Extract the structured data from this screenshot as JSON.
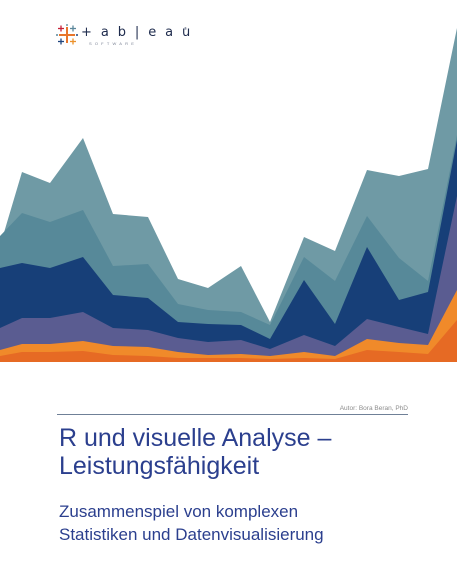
{
  "brand": {
    "name": "+ a b | e a u",
    "tagline": "SOFTWARE",
    "trademark": "®"
  },
  "document": {
    "author": "Autor: Bora Beran, PhD",
    "title_lines": [
      "R und visuelle Analyse –",
      "Leistungsfähigkeit"
    ],
    "subtitle_lines": [
      "Zusammenspiel von komplexen",
      "Statistiken und Datenvisualisierung"
    ]
  },
  "colors": {
    "title": "#2b3f8e",
    "rule": "#6f8097",
    "layer_light": "#6f9aa5",
    "layer_mid": "#578999",
    "layer_dark": "#173f78",
    "layer_slate": "#5a5c91",
    "layer_orange": "#f08a2a",
    "layer_orange_dark": "#e66a24"
  }
}
